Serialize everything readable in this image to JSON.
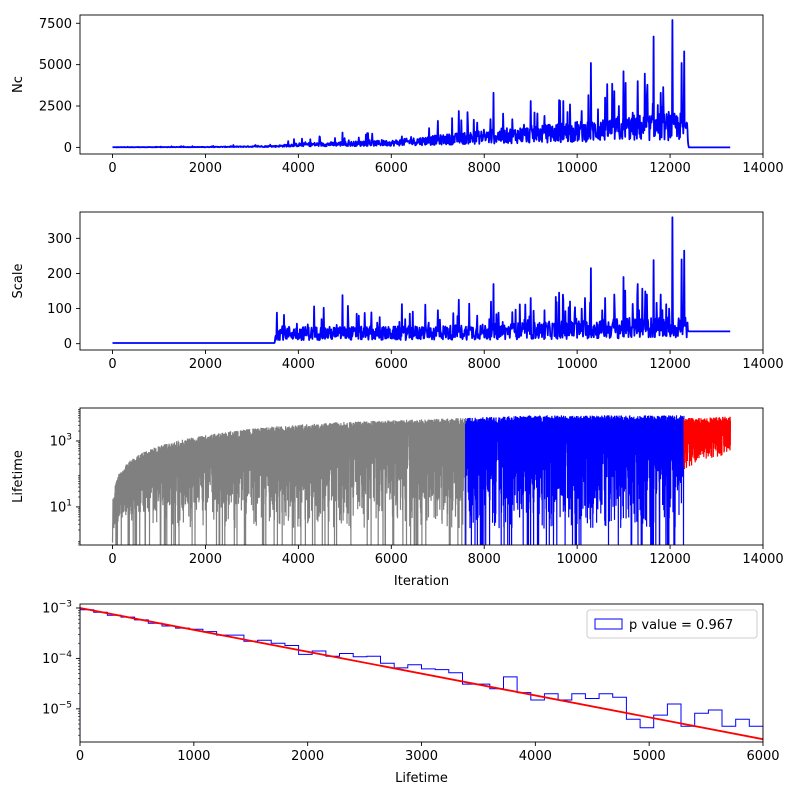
{
  "figure": {
    "background": "#ffffff"
  },
  "colors": {
    "blue": "#0000ff",
    "gray": "#808080",
    "red": "#ff0000",
    "black": "#000000"
  },
  "chart_data": [
    {
      "type": "line",
      "ylabel": "Nc",
      "xlabel": "",
      "xlim": [
        -700,
        14000
      ],
      "ylim": [
        -400,
        8000
      ],
      "yscale": "linear",
      "xticks": [
        0,
        2000,
        4000,
        6000,
        8000,
        10000,
        12000,
        14000
      ],
      "xtick_labels": [
        "0",
        "2000",
        "4000",
        "6000",
        "8000",
        "10000",
        "12000",
        "14000"
      ],
      "yticks": [
        0,
        2500,
        5000,
        7500
      ],
      "ytick_labels": [
        "0",
        "2500",
        "5000",
        "7500"
      ],
      "series": [
        {
          "color": "#0000ff",
          "style": "noisy-spiky",
          "x_range": [
            0,
            13300
          ],
          "baseline": [
            [
              0,
              10
            ],
            [
              2000,
              20
            ],
            [
              3500,
              60
            ],
            [
              4000,
              150
            ],
            [
              6000,
              250
            ],
            [
              8000,
              600
            ],
            [
              10000,
              900
            ],
            [
              11000,
              1100
            ],
            [
              12000,
              1200
            ],
            [
              12350,
              1200
            ],
            [
              12400,
              0
            ],
            [
              13300,
              0
            ]
          ],
          "spikes": [
            [
              4950,
              900
            ],
            [
              5300,
              600
            ],
            [
              5800,
              450
            ],
            [
              6300,
              500
            ],
            [
              6800,
              500
            ],
            [
              7000,
              1600
            ],
            [
              7450,
              2200
            ],
            [
              7850,
              1500
            ],
            [
              8200,
              3300
            ],
            [
              8600,
              1700
            ],
            [
              9000,
              2800
            ],
            [
              9300,
              1900
            ],
            [
              9700,
              2800
            ],
            [
              9850,
              2600
            ],
            [
              10100,
              2200
            ],
            [
              10300,
              5100
            ],
            [
              10450,
              2300
            ],
            [
              10600,
              3000
            ],
            [
              10800,
              3400
            ],
            [
              11000,
              4600
            ],
            [
              11200,
              2100
            ],
            [
              11300,
              4000
            ],
            [
              11500,
              3200
            ],
            [
              11650,
              6700
            ],
            [
              11800,
              3300
            ],
            [
              12050,
              7700
            ],
            [
              12250,
              5100
            ],
            [
              12300,
              5800
            ]
          ]
        }
      ]
    },
    {
      "type": "line",
      "ylabel": "Scale",
      "xlabel": "",
      "xlim": [
        -700,
        14000
      ],
      "ylim": [
        -18,
        375
      ],
      "yscale": "linear",
      "xticks": [
        0,
        2000,
        4000,
        6000,
        8000,
        10000,
        12000,
        14000
      ],
      "xtick_labels": [
        "0",
        "2000",
        "4000",
        "6000",
        "8000",
        "10000",
        "12000",
        "14000"
      ],
      "yticks": [
        0,
        100,
        200,
        300
      ],
      "ytick_labels": [
        "0",
        "100",
        "200",
        "300"
      ],
      "series": [
        {
          "color": "#0000ff",
          "style": "noisy-spiky",
          "x_range": [
            0,
            13300
          ],
          "baseline": [
            [
              0,
              2
            ],
            [
              3490,
              2
            ],
            [
              3510,
              30
            ],
            [
              4000,
              28
            ],
            [
              6000,
              28
            ],
            [
              8000,
              32
            ],
            [
              10000,
              38
            ],
            [
              11000,
              42
            ],
            [
              12000,
              45
            ],
            [
              12350,
              45
            ],
            [
              12400,
              35
            ],
            [
              13300,
              35
            ]
          ],
          "spikes": [
            [
              3650,
              50
            ],
            [
              4200,
              55
            ],
            [
              4500,
              70
            ],
            [
              4950,
              138
            ],
            [
              5300,
              80
            ],
            [
              5700,
              60
            ],
            [
              6300,
              70
            ],
            [
              6800,
              60
            ],
            [
              7000,
              95
            ],
            [
              7450,
              125
            ],
            [
              7850,
              80
            ],
            [
              8200,
              170
            ],
            [
              8600,
              90
            ],
            [
              9000,
              130
            ],
            [
              9300,
              95
            ],
            [
              9700,
              125
            ],
            [
              9850,
              120
            ],
            [
              10100,
              100
            ],
            [
              10300,
              215
            ],
            [
              10600,
              130
            ],
            [
              10800,
              140
            ],
            [
              11000,
              190
            ],
            [
              11300,
              170
            ],
            [
              11500,
              140
            ],
            [
              11650,
              238
            ],
            [
              11800,
              140
            ],
            [
              12050,
              360
            ],
            [
              12250,
              240
            ],
            [
              12300,
              265
            ]
          ]
        }
      ]
    },
    {
      "type": "line",
      "ylabel": "Lifetime",
      "xlabel": "Iteration",
      "xlim": [
        -700,
        14000
      ],
      "yscale": "log",
      "ylim": [
        0.7,
        10000
      ],
      "xticks": [
        0,
        2000,
        4000,
        6000,
        8000,
        10000,
        12000,
        14000
      ],
      "xtick_labels": [
        "0",
        "2000",
        "4000",
        "6000",
        "8000",
        "10000",
        "12000",
        "14000"
      ],
      "yticks": [
        10,
        1000
      ],
      "ytick_labels_base": [
        "10",
        "10"
      ],
      "ytick_labels_exp": [
        "1",
        "3"
      ],
      "series": [
        {
          "color": "#808080",
          "style": "dense-noise",
          "x_range": [
            0,
            7600
          ],
          "upper_envelope": [
            [
              0,
              1
            ],
            [
              30,
              20
            ],
            [
              100,
              80
            ],
            [
              300,
              200
            ],
            [
              1000,
              700
            ],
            [
              2000,
              1500
            ],
            [
              3500,
              2800
            ],
            [
              5000,
              3800
            ],
            [
              7600,
              5000
            ]
          ],
          "lower_min": 0.7
        },
        {
          "color": "#0000ff",
          "style": "dense-noise",
          "x_range": [
            7600,
            12300
          ],
          "upper_envelope": [
            [
              7600,
              5000
            ],
            [
              9000,
              6000
            ],
            [
              12300,
              6000
            ]
          ],
          "lower_min": 0.7
        },
        {
          "color": "#ff0000",
          "style": "dense-noise",
          "x_range": [
            12300,
            13300
          ],
          "upper_envelope": [
            [
              12300,
              5000
            ],
            [
              13300,
              5500
            ]
          ],
          "lower_start": [
            [
              12300,
              50
            ],
            [
              12500,
              200
            ],
            [
              13300,
              400
            ]
          ]
        }
      ]
    },
    {
      "type": "histogram",
      "ylabel": "",
      "xlabel": "Lifetime",
      "xlim": [
        0,
        6000
      ],
      "yscale": "log",
      "ylim": [
        2.2e-06,
        0.0012
      ],
      "xticks": [
        0,
        1000,
        2000,
        3000,
        4000,
        5000,
        6000
      ],
      "xtick_labels": [
        "0",
        "1000",
        "2000",
        "3000",
        "4000",
        "5000",
        "6000"
      ],
      "yticks": [
        1e-05,
        0.0001,
        0.001
      ],
      "ytick_labels_base": [
        "10",
        "10",
        "10"
      ],
      "ytick_labels_exp": [
        "−5",
        "−4",
        "−3"
      ],
      "bin_width": 120,
      "hist_values": [
        0.00092,
        0.00082,
        0.00072,
        0.00066,
        0.00058,
        0.0005,
        0.00044,
        0.0004,
        0.00038,
        0.00034,
        0.00029,
        0.00029,
        0.00022,
        0.00023,
        0.0002,
        0.00018,
        0.00012,
        0.00014,
        0.00011,
        0.000125,
        0.000108,
        0.00011,
        8e-05,
        6.5e-05,
        7.5e-05,
        6.2e-05,
        6e-05,
        5.2e-05,
        3.1e-05,
        3.1e-05,
        2.5e-05,
        4.3e-05,
        2.1e-05,
        1.5e-05,
        2e-05,
        1.5e-05,
        2e-05,
        1.6e-05,
        2e-05,
        1.7e-05,
        6.2e-06,
        4.2e-06,
        7.5e-06,
        1.25e-05,
        4.5e-06,
        8.2e-06,
        9.5e-06,
        4.5e-06,
        6.2e-06,
        4.5e-06,
        2.2e-06,
        4.2e-06
      ],
      "series": [
        {
          "name": "p value = 0.967",
          "color": "#0000ff",
          "kind": "step-histogram"
        },
        {
          "color": "#ff0000",
          "kind": "exponential-fit",
          "points": [
            [
              0,
              0.001
            ],
            [
              6000,
              2.5e-06
            ]
          ]
        }
      ],
      "legend": {
        "position": "top-right",
        "entries": [
          "p value = 0.967"
        ]
      }
    }
  ]
}
